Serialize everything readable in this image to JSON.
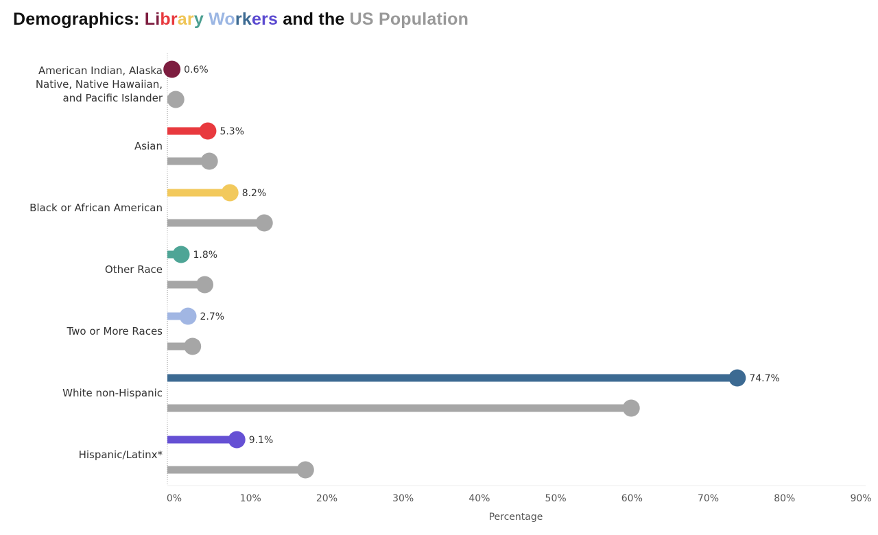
{
  "title": {
    "segments": [
      {
        "text": "Demographics: ",
        "color": "#111111"
      },
      {
        "text": "Li",
        "color": "#7d1d3f"
      },
      {
        "text": "br",
        "color": "#e8393e"
      },
      {
        "text": "ar",
        "color": "#efc556"
      },
      {
        "text": "y ",
        "color": "#4a9e90"
      },
      {
        "text": "Wo",
        "color": "#9bb6e3"
      },
      {
        "text": "rk",
        "color": "#3c6a92"
      },
      {
        "text": "ers",
        "color": "#5b4ad0"
      },
      {
        "text": " and the ",
        "color": "#111111"
      },
      {
        "text": "US Population",
        "color": "#999999"
      }
    ]
  },
  "chart_data": {
    "type": "lollipop",
    "title": "Demographics: Library Workers and the US Population",
    "xlabel": "Percentage",
    "ylabel": "",
    "xlim": [
      0,
      90
    ],
    "xticks": [
      "0%",
      "10%",
      "20%",
      "30%",
      "40%",
      "50%",
      "60%",
      "70%",
      "80%",
      "90%"
    ],
    "grid": false,
    "legend": "none",
    "categories": [
      "American Indian, Alaska Native, Native Hawaiian, and Pacific Islander",
      "Asian",
      "Black or African American",
      "Other Race",
      "Two or More Races",
      "White non-Hispanic",
      "Hispanic/Latinx*"
    ],
    "category_lines": [
      [
        "American Indian, Alaska",
        "Native, Native Hawaiian,",
        "and Pacific Islander"
      ],
      [
        "Asian"
      ],
      [
        "Black or African American"
      ],
      [
        "Other Race"
      ],
      [
        "Two or More Races"
      ],
      [
        "White non-Hispanic"
      ],
      [
        "Hispanic/Latinx*"
      ]
    ],
    "series": [
      {
        "name": "Library Workers",
        "values": [
          0.6,
          5.3,
          8.2,
          1.8,
          2.7,
          74.7,
          9.1
        ],
        "labels": [
          "0.6%",
          "5.3%",
          "8.2%",
          "1.8%",
          "2.7%",
          "74.7%",
          "9.1%"
        ],
        "colors": [
          "#7d1d3f",
          "#e8393e",
          "#f2c95c",
          "#4ea596",
          "#a1b6e3",
          "#3c6a92",
          "#6550d4"
        ]
      },
      {
        "name": "US Population",
        "values": [
          1.1,
          5.5,
          12.7,
          4.9,
          3.3,
          60.8,
          18.1
        ],
        "color": "#a6a6a6"
      }
    ]
  }
}
